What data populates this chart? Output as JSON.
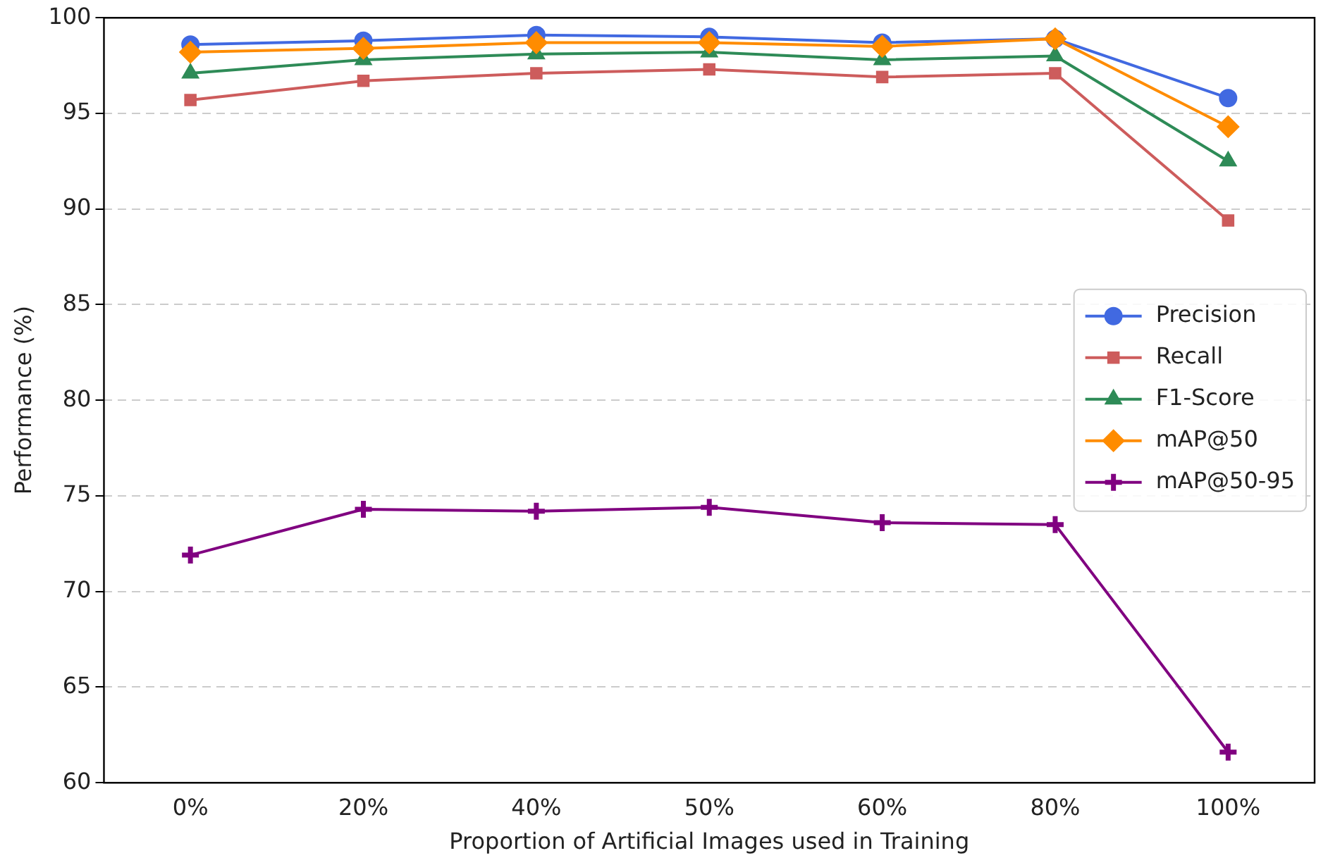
{
  "chart_data": {
    "type": "line",
    "xlabel": "Proportion of Artificial Images used in Training",
    "ylabel": "Performance (%)",
    "categories": [
      "0%",
      "20%",
      "40%",
      "50%",
      "60%",
      "80%",
      "100%"
    ],
    "ylim": [
      60,
      100
    ],
    "yticks": [
      60,
      65,
      70,
      75,
      80,
      85,
      90,
      95,
      100
    ],
    "grid": "y",
    "legend": "right",
    "series": [
      {
        "name": "Precision",
        "color": "#4169e1",
        "marker": "circle",
        "values": [
          98.6,
          98.8,
          99.1,
          99.0,
          98.7,
          98.9,
          95.8
        ]
      },
      {
        "name": "Recall",
        "color": "#cd5c5c",
        "marker": "square",
        "values": [
          95.7,
          96.7,
          97.1,
          97.3,
          96.9,
          97.1,
          89.4
        ]
      },
      {
        "name": "F1-Score",
        "color": "#2e8b57",
        "marker": "triangle",
        "values": [
          97.1,
          97.8,
          98.1,
          98.2,
          97.8,
          98.0,
          92.5
        ]
      },
      {
        "name": "mAP@50",
        "color": "#ff8c00",
        "marker": "diamond",
        "values": [
          98.2,
          98.4,
          98.7,
          98.7,
          98.5,
          98.9,
          94.3
        ]
      },
      {
        "name": "mAP@50-95",
        "color": "#800080",
        "marker": "cross",
        "values": [
          71.9,
          74.3,
          74.2,
          74.4,
          73.6,
          73.5,
          61.6
        ]
      }
    ]
  }
}
